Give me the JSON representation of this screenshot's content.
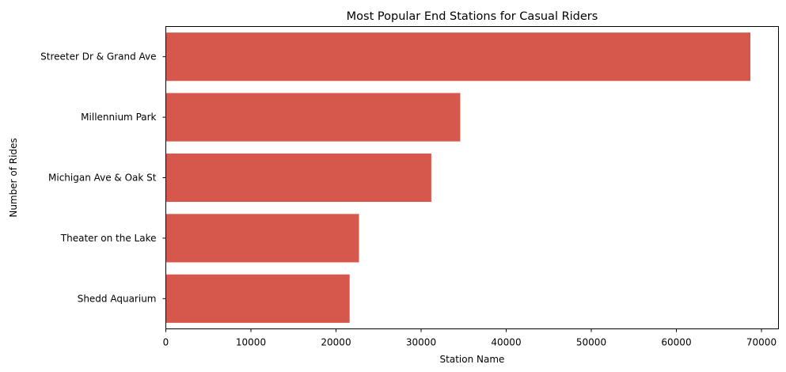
{
  "chart_data": {
    "type": "bar",
    "orientation": "horizontal",
    "title": "Most Popular End Stations for Casual Riders",
    "xlabel": "Station Name",
    "ylabel": "Number of Rides",
    "categories": [
      "Streeter Dr & Grand Ave",
      "Millennium Park",
      "Michigan Ave & Oak St",
      "Theater on the Lake",
      "Shedd Aquarium"
    ],
    "values": [
      68700,
      34600,
      31200,
      22700,
      21600
    ],
    "xlim": [
      0,
      72000
    ],
    "xticks": [
      0,
      10000,
      20000,
      30000,
      40000,
      50000,
      60000,
      70000
    ],
    "bar_color": "#d6574c",
    "grid": false,
    "legend": "none"
  }
}
